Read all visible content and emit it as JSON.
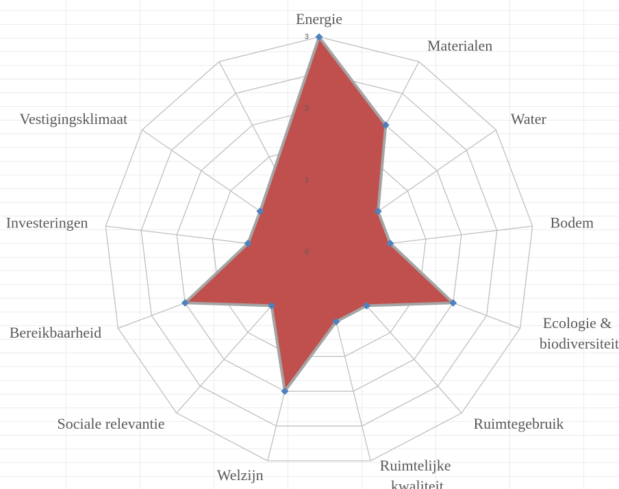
{
  "chart_data": {
    "type": "radar",
    "categories": [
      "Energie",
      "Materialen",
      "Water",
      "Bodem",
      "Ecologie & biodiversiteit",
      "Ruimtegebruik",
      "Ruimtelijke kwaliteit",
      "Welzijn",
      "Sociale relevantie",
      "Bereikbaarheid",
      "Investeringen",
      "Vestigingsklimaat",
      null
    ],
    "values": [
      3,
      2,
      1,
      1,
      2,
      1,
      1,
      2,
      1,
      2,
      1,
      1,
      null
    ],
    "color": "#c0504d",
    "line_color": "#a5a5a5",
    "marker_color": "#4f81bd",
    "ylim": [
      0,
      3
    ],
    "yticks": [
      0,
      1,
      2,
      3
    ],
    "grid": true,
    "minor_grid": true
  }
}
